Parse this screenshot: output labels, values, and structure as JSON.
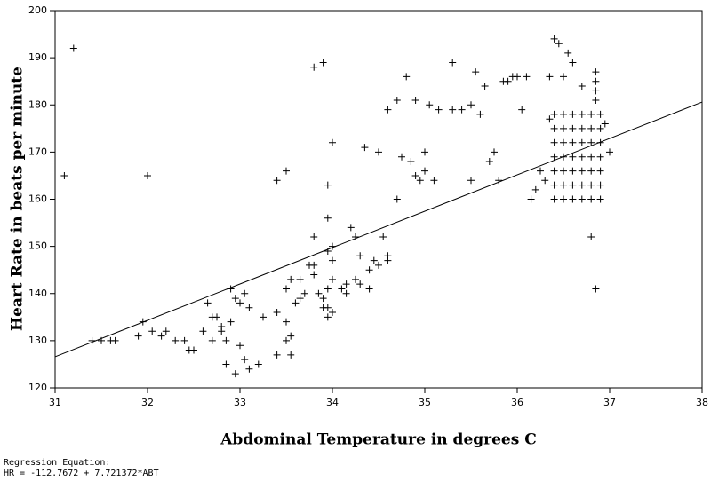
{
  "chart_data": {
    "type": "scatter",
    "x_label": "Abdominal Temperature in degrees C",
    "y_label": "Heart Rate in beats per minute",
    "annotations": [
      "Regression Equation:",
      "HR = -112.7672 + 7.721372*ABT"
    ],
    "xlim": [
      31,
      38
    ],
    "ylim": [
      120,
      200
    ],
    "xticks": [
      31,
      32,
      33,
      34,
      35,
      36,
      37,
      38
    ],
    "yticks": [
      120,
      130,
      140,
      150,
      160,
      170,
      180,
      190,
      200
    ],
    "color": "#000000",
    "regression_line": {
      "x": [
        31,
        38
      ],
      "values": [
        126.6,
        180.6
      ]
    },
    "x": [
      31.1,
      31.2,
      31.4,
      31.5,
      31.6,
      31.65,
      31.9,
      31.95,
      32.0,
      32.05,
      32.15,
      32.2,
      32.3,
      32.4,
      32.45,
      32.5,
      32.6,
      32.65,
      32.7,
      32.75,
      32.7,
      32.8,
      32.8,
      32.85,
      32.85,
      32.9,
      32.95,
      32.9,
      32.95,
      33.0,
      33.0,
      33.05,
      33.05,
      33.1,
      33.1,
      33.2,
      33.25,
      33.4,
      33.4,
      33.4,
      33.5,
      33.5,
      33.5,
      33.5,
      33.55,
      33.55,
      33.55,
      33.6,
      33.65,
      33.65,
      33.7,
      33.75,
      33.8,
      33.8,
      33.8,
      33.8,
      33.85,
      33.9,
      33.9,
      33.9,
      33.95,
      33.95,
      33.95,
      33.95,
      33.95,
      33.95,
      34.0,
      34.0,
      34.0,
      34.0,
      34.0,
      34.1,
      34.15,
      34.15,
      34.2,
      34.25,
      34.25,
      34.3,
      34.3,
      34.35,
      34.4,
      34.4,
      34.45,
      34.5,
      34.5,
      34.55,
      34.6,
      34.6,
      34.6,
      34.7,
      34.7,
      34.75,
      34.8,
      34.85,
      34.9,
      34.9,
      34.95,
      35.0,
      35.0,
      35.05,
      35.1,
      35.15,
      35.3,
      35.3,
      35.4,
      35.5,
      35.5,
      35.55,
      35.6,
      35.65,
      35.7,
      35.75,
      35.8,
      35.85,
      35.9,
      35.95,
      36.0,
      36.05,
      36.1,
      36.15,
      36.2,
      36.25,
      36.3,
      36.35,
      36.35,
      36.4,
      36.45,
      36.5,
      36.55,
      36.6,
      36.7,
      36.8,
      36.85,
      36.95,
      37.0,
      36.85,
      36.85,
      36.85,
      36.85,
      36.4,
      36.4,
      36.4,
      36.4,
      36.4,
      36.4,
      36.4,
      36.5,
      36.5,
      36.5,
      36.5,
      36.5,
      36.5,
      36.5,
      36.6,
      36.6,
      36.6,
      36.6,
      36.6,
      36.6,
      36.6,
      36.7,
      36.7,
      36.7,
      36.7,
      36.7,
      36.7,
      36.7,
      36.8,
      36.8,
      36.8,
      36.8,
      36.8,
      36.8,
      36.8,
      36.9,
      36.9,
      36.9,
      36.9,
      36.9,
      36.9,
      36.9
    ],
    "values": [
      165,
      192,
      130,
      130,
      130,
      130,
      131,
      134,
      165,
      132,
      131,
      132,
      130,
      130,
      128,
      128,
      132,
      138,
      135,
      135,
      130,
      133,
      132,
      125,
      130,
      141,
      139,
      134,
      123,
      138,
      129,
      140,
      126,
      137,
      124,
      125,
      135,
      136,
      127,
      164,
      166,
      130,
      134,
      141,
      143,
      131,
      127,
      138,
      143,
      139,
      140,
      146,
      146,
      144,
      152,
      188,
      140,
      137,
      139,
      189,
      149,
      141,
      137,
      135,
      156,
      163,
      136,
      172,
      147,
      150,
      143,
      141,
      140,
      142,
      154,
      152,
      143,
      142,
      148,
      171,
      141,
      145,
      147,
      146,
      170,
      152,
      148,
      147,
      179,
      181,
      160,
      169,
      186,
      168,
      165,
      181,
      164,
      166,
      170,
      180,
      164,
      179,
      189,
      179,
      179,
      164,
      180,
      187,
      178,
      184,
      168,
      170,
      164,
      185,
      185,
      186,
      186,
      179,
      186,
      160,
      162,
      166,
      164,
      177,
      186,
      194,
      193,
      186,
      191,
      189,
      184,
      152,
      141,
      176,
      170,
      181,
      183,
      185,
      187,
      160,
      163,
      166,
      169,
      172,
      175,
      178,
      160,
      163,
      166,
      169,
      172,
      175,
      178,
      160,
      163,
      166,
      169,
      172,
      175,
      178,
      160,
      163,
      166,
      169,
      172,
      175,
      178,
      160,
      163,
      166,
      169,
      172,
      175,
      178,
      160,
      163,
      166,
      169,
      172,
      175,
      178
    ]
  }
}
